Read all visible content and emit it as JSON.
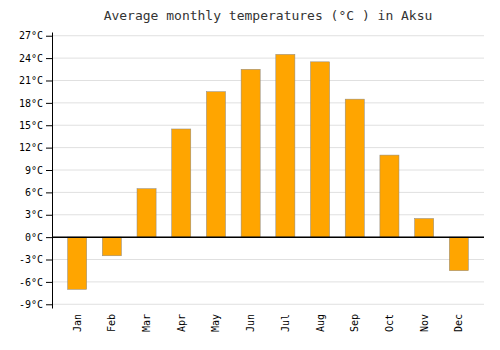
{
  "chart_data": {
    "type": "bar",
    "title": "Average monthly temperatures (°C ) in Aksu",
    "categories": [
      "Jan",
      "Feb",
      "Mar",
      "Apr",
      "May",
      "Jun",
      "Jul",
      "Aug",
      "Sep",
      "Oct",
      "Nov",
      "Dec"
    ],
    "values": [
      -7.0,
      -2.5,
      6.5,
      14.5,
      19.5,
      22.5,
      24.5,
      23.5,
      18.5,
      11.0,
      2.5,
      -4.5
    ],
    "color": "#FFA500",
    "ylim": [
      -9.5,
      27.5
    ],
    "yticks": [
      {
        "value": -9,
        "label": "-9°C"
      },
      {
        "value": -6,
        "label": "-6°C"
      },
      {
        "value": -3,
        "label": "-3°C"
      },
      {
        "value": 0,
        "label": "0°C"
      },
      {
        "value": 3,
        "label": "3°C"
      },
      {
        "value": 6,
        "label": "6°C"
      },
      {
        "value": 9,
        "label": "9°C"
      },
      {
        "value": 12,
        "label": "12°C"
      },
      {
        "value": 15,
        "label": "15°C"
      },
      {
        "value": 18,
        "label": "18°C"
      },
      {
        "value": 21,
        "label": "21°C"
      },
      {
        "value": 24,
        "label": "24°C"
      },
      {
        "value": 27,
        "label": "27°C"
      }
    ],
    "grid": true
  }
}
